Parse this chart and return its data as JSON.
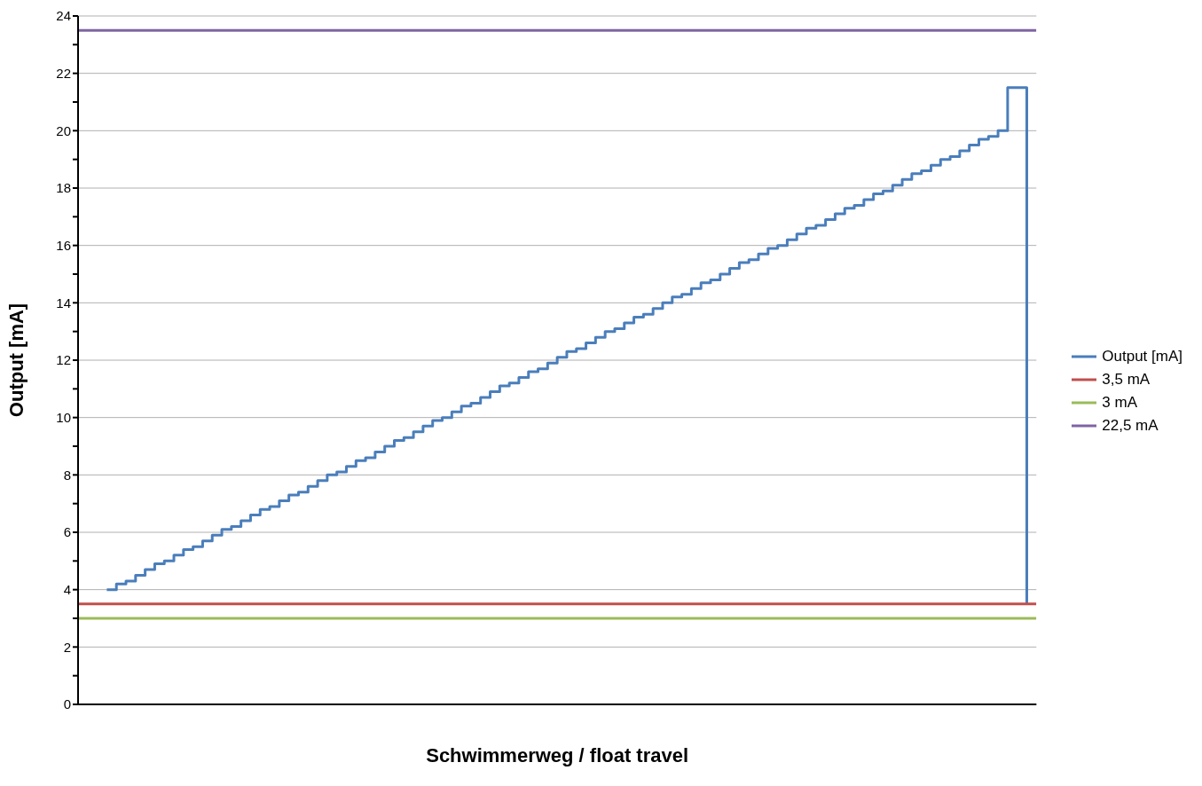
{
  "chart_data": {
    "type": "line",
    "xlabel": "Schwimmerweg / float travel",
    "ylabel": "Output [mA]",
    "categories": [
      null,
      null,
      null,
      null,
      null,
      null,
      null,
      null,
      null,
      null,
      null,
      null,
      null,
      null,
      null,
      null,
      null,
      null,
      null,
      null,
      null,
      null,
      null,
      null,
      null,
      null,
      null,
      null,
      null,
      null,
      null,
      null,
      null,
      null,
      null,
      null,
      null,
      null,
      null,
      null,
      null,
      null,
      null,
      null,
      null,
      null,
      null,
      null,
      null,
      null,
      null,
      null,
      null,
      null,
      null,
      null,
      null,
      null,
      null,
      null,
      null,
      null,
      null,
      null,
      null,
      null,
      null,
      null,
      null,
      null,
      null,
      null,
      null,
      null,
      null,
      null,
      null,
      null,
      null,
      null,
      null,
      null,
      null,
      null,
      null,
      null,
      null,
      null,
      null,
      null,
      null,
      null,
      null,
      null,
      null,
      null,
      null,
      null,
      null,
      null,
      null
    ],
    "ylim": [
      0,
      24
    ],
    "yticks": [
      0,
      {
        "value": 1,
        "label": null
      },
      2,
      {
        "value": 3,
        "label": null
      },
      4,
      {
        "value": 5,
        "label": null
      },
      6,
      {
        "value": 7,
        "label": null
      },
      8,
      {
        "value": 9,
        "label": null
      },
      10,
      {
        "value": 11,
        "label": null
      },
      12,
      {
        "value": 13,
        "label": null
      },
      14,
      {
        "value": 15,
        "label": null
      },
      16,
      {
        "value": 17,
        "label": null
      },
      18,
      {
        "value": 19,
        "label": null
      },
      20,
      {
        "value": 21,
        "label": null
      },
      22,
      {
        "value": 23,
        "label": null
      },
      24
    ],
    "grid": "y",
    "legend": "right",
    "tick_labels": "y",
    "marker": "none",
    "series": [
      {
        "name": "Output [mA]",
        "type": "step",
        "color": "#4a7ebb",
        "values": [
          null,
          null,
          null,
          4.0,
          4.2,
          4.3,
          4.5,
          4.7,
          4.9,
          5.0,
          5.2,
          5.4,
          5.5,
          5.7,
          5.9,
          6.1,
          6.2,
          6.4,
          6.6,
          6.8,
          6.9,
          7.1,
          7.3,
          7.4,
          7.6,
          7.8,
          8.0,
          8.1,
          8.3,
          8.5,
          8.6,
          8.8,
          9.0,
          9.2,
          9.3,
          9.5,
          9.7,
          9.9,
          10.0,
          10.2,
          10.4,
          10.5,
          10.7,
          10.9,
          11.1,
          11.2,
          11.4,
          11.6,
          11.7,
          11.9,
          12.1,
          12.3,
          12.4,
          12.6,
          12.8,
          13.0,
          13.1,
          13.3,
          13.5,
          13.6,
          13.8,
          14.0,
          14.2,
          14.3,
          14.5,
          14.7,
          14.8,
          15.0,
          15.2,
          15.4,
          15.5,
          15.7,
          15.9,
          16.0,
          16.2,
          16.4,
          16.6,
          16.7,
          16.9,
          17.1,
          17.3,
          17.4,
          17.6,
          17.8,
          17.9,
          18.1,
          18.3,
          18.5,
          18.6,
          18.8,
          19.0,
          19.1,
          19.3,
          19.5,
          19.7,
          19.8,
          20.0,
          21.5,
          21.5,
          3.5,
          null
        ]
      },
      {
        "name": "3,5 mA",
        "type": "line",
        "color": "#c0504d",
        "values": [
          3.5,
          3.5,
          3.5,
          3.5,
          3.5,
          3.5,
          3.5,
          3.5,
          3.5,
          3.5,
          3.5,
          3.5,
          3.5,
          3.5,
          3.5,
          3.5,
          3.5,
          3.5,
          3.5,
          3.5,
          3.5,
          3.5,
          3.5,
          3.5,
          3.5,
          3.5,
          3.5,
          3.5,
          3.5,
          3.5,
          3.5,
          3.5,
          3.5,
          3.5,
          3.5,
          3.5,
          3.5,
          3.5,
          3.5,
          3.5,
          3.5,
          3.5,
          3.5,
          3.5,
          3.5,
          3.5,
          3.5,
          3.5,
          3.5,
          3.5,
          3.5,
          3.5,
          3.5,
          3.5,
          3.5,
          3.5,
          3.5,
          3.5,
          3.5,
          3.5,
          3.5,
          3.5,
          3.5,
          3.5,
          3.5,
          3.5,
          3.5,
          3.5,
          3.5,
          3.5,
          3.5,
          3.5,
          3.5,
          3.5,
          3.5,
          3.5,
          3.5,
          3.5,
          3.5,
          3.5,
          3.5,
          3.5,
          3.5,
          3.5,
          3.5,
          3.5,
          3.5,
          3.5,
          3.5,
          3.5,
          3.5,
          3.5,
          3.5,
          3.5,
          3.5,
          3.5,
          3.5,
          3.5,
          3.5,
          3.5,
          3.5
        ]
      },
      {
        "name": "3 mA",
        "type": "line",
        "color": "#9bbb59",
        "values": [
          3,
          3,
          3,
          3,
          3,
          3,
          3,
          3,
          3,
          3,
          3,
          3,
          3,
          3,
          3,
          3,
          3,
          3,
          3,
          3,
          3,
          3,
          3,
          3,
          3,
          3,
          3,
          3,
          3,
          3,
          3,
          3,
          3,
          3,
          3,
          3,
          3,
          3,
          3,
          3,
          3,
          3,
          3,
          3,
          3,
          3,
          3,
          3,
          3,
          3,
          3,
          3,
          3,
          3,
          3,
          3,
          3,
          3,
          3,
          3,
          3,
          3,
          3,
          3,
          3,
          3,
          3,
          3,
          3,
          3,
          3,
          3,
          3,
          3,
          3,
          3,
          3,
          3,
          3,
          3,
          3,
          3,
          3,
          3,
          3,
          3,
          3,
          3,
          3,
          3,
          3,
          3,
          3,
          3,
          3,
          3,
          3,
          3,
          3,
          3,
          3
        ]
      },
      {
        "name": "22,5 mA",
        "type": "line",
        "color": "#8064a2",
        "values": [
          23.5,
          23.5,
          23.5,
          23.5,
          23.5,
          23.5,
          23.5,
          23.5,
          23.5,
          23.5,
          23.5,
          23.5,
          23.5,
          23.5,
          23.5,
          23.5,
          23.5,
          23.5,
          23.5,
          23.5,
          23.5,
          23.5,
          23.5,
          23.5,
          23.5,
          23.5,
          23.5,
          23.5,
          23.5,
          23.5,
          23.5,
          23.5,
          23.5,
          23.5,
          23.5,
          23.5,
          23.5,
          23.5,
          23.5,
          23.5,
          23.5,
          23.5,
          23.5,
          23.5,
          23.5,
          23.5,
          23.5,
          23.5,
          23.5,
          23.5,
          23.5,
          23.5,
          23.5,
          23.5,
          23.5,
          23.5,
          23.5,
          23.5,
          23.5,
          23.5,
          23.5,
          23.5,
          23.5,
          23.5,
          23.5,
          23.5,
          23.5,
          23.5,
          23.5,
          23.5,
          23.5,
          23.5,
          23.5,
          23.5,
          23.5,
          23.5,
          23.5,
          23.5,
          23.5,
          23.5,
          23.5,
          23.5,
          23.5,
          23.5,
          23.5,
          23.5,
          23.5,
          23.5,
          23.5,
          23.5,
          23.5,
          23.5,
          23.5,
          23.5,
          23.5,
          23.5,
          23.5,
          23.5,
          23.5,
          23.5,
          23.5
        ]
      }
    ]
  }
}
